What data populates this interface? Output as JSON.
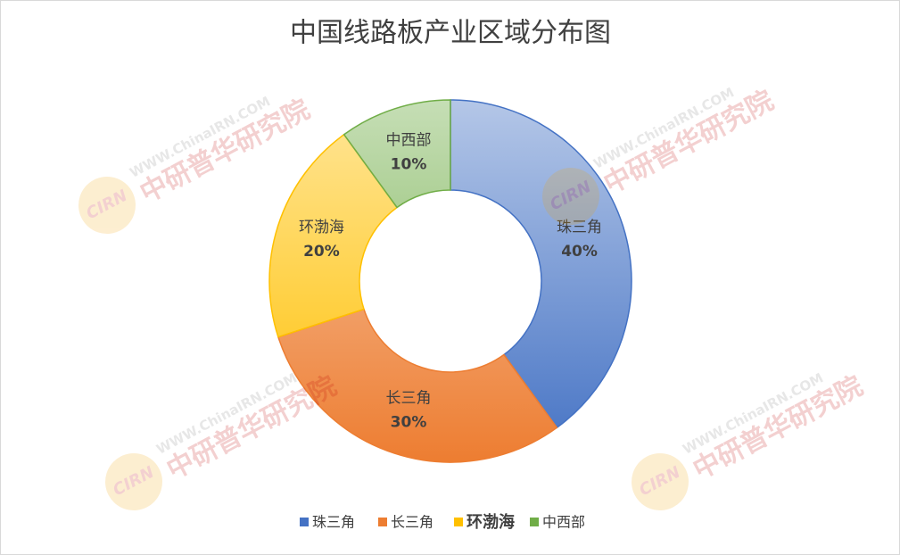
{
  "chart_data": {
    "type": "donut",
    "title": "中国线路板产业区域分布图",
    "categories": [
      "珠三角",
      "长三角",
      "环渤海",
      "中西部"
    ],
    "values": [
      40,
      30,
      20,
      10
    ],
    "value_labels": [
      "40%",
      "30%",
      "20%",
      "10%"
    ],
    "colors": [
      "#4472c4",
      "#ed7d31",
      "#ffc000",
      "#70ad47"
    ],
    "legend": "bottom"
  },
  "watermark": {
    "logo": "CIRN",
    "site": "WWW.ChinaIRN.COM",
    "name": "中研普华研究院"
  }
}
